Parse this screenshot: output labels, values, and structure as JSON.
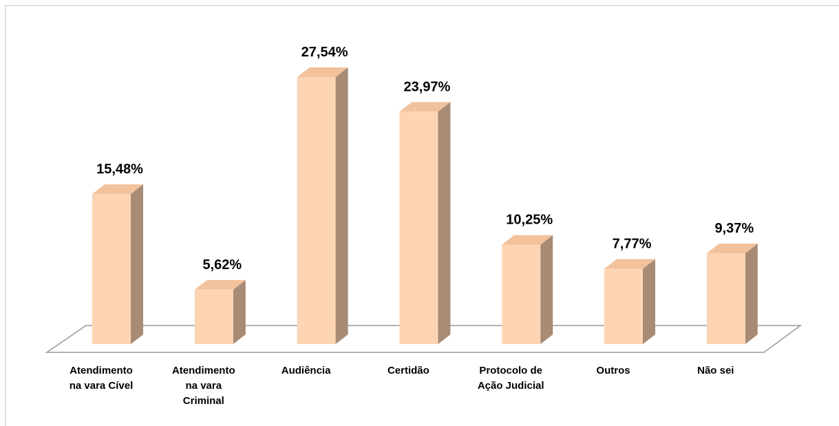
{
  "chart_data": {
    "type": "bar3d",
    "categories": [
      "Atendimento\nna vara Cível",
      "Atendimento\nna vara\nCriminal",
      "Audiência",
      "Certidão",
      "Protocolo de\nAção Judicial",
      "Outros",
      "Não sei"
    ],
    "values": [
      15.48,
      5.62,
      27.54,
      23.97,
      10.25,
      7.77,
      9.37
    ],
    "value_labels": [
      "15,48%",
      "5,62%",
      "27,54%",
      "23,97%",
      "10,25%",
      "7,77%",
      "9,37%"
    ],
    "color": "#fdd5b4"
  }
}
